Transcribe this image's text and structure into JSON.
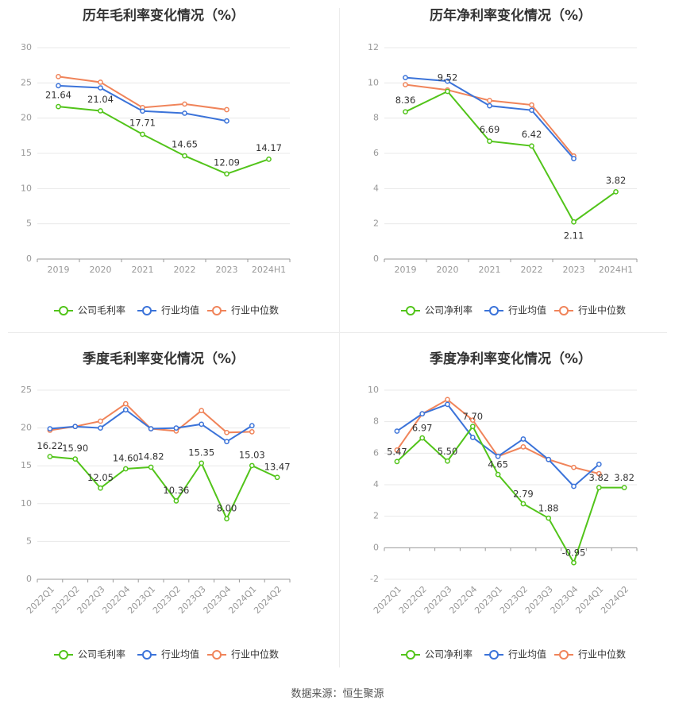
{
  "colors": {
    "company": "#52c41a",
    "avg": "#3b73d9",
    "median": "#f0845a",
    "axis": "#999999",
    "grid": "#e8e8e8"
  },
  "legend": {
    "avg": "行业均值",
    "median": "行业中位数"
  },
  "source": "数据来源：恒生聚源",
  "chart_data": [
    {
      "type": "line",
      "title": "历年毛利率变化情况（%）",
      "categories": [
        "2019",
        "2020",
        "2021",
        "2022",
        "2023",
        "2024H1"
      ],
      "ylim": [
        0,
        30
      ],
      "yticks": [
        0,
        5,
        10,
        15,
        20,
        25,
        30
      ],
      "legend_company": "公司毛利率",
      "series": [
        {
          "name": "公司毛利率",
          "key": "company",
          "labeled": true,
          "values": [
            21.64,
            21.04,
            17.71,
            14.65,
            12.09,
            14.17
          ]
        },
        {
          "name": "行业均值",
          "key": "avg",
          "values": [
            24.6,
            24.3,
            21.0,
            20.7,
            19.6,
            null
          ]
        },
        {
          "name": "行业中位数",
          "key": "median",
          "values": [
            25.9,
            25.1,
            21.5,
            22.0,
            21.2,
            null
          ]
        }
      ]
    },
    {
      "type": "line",
      "title": "历年净利率变化情况（%）",
      "categories": [
        "2019",
        "2020",
        "2021",
        "2022",
        "2023",
        "2024H1"
      ],
      "ylim": [
        0,
        12
      ],
      "yticks": [
        0,
        2,
        4,
        6,
        8,
        10,
        12
      ],
      "legend_company": "公司净利率",
      "series": [
        {
          "name": "公司净利率",
          "key": "company",
          "labeled": true,
          "values": [
            8.36,
            9.52,
            6.69,
            6.42,
            2.11,
            3.82
          ]
        },
        {
          "name": "行业均值",
          "key": "avg",
          "values": [
            10.3,
            10.1,
            8.7,
            8.45,
            5.7,
            null
          ]
        },
        {
          "name": "行业中位数",
          "key": "median",
          "values": [
            9.9,
            9.6,
            9.0,
            8.75,
            5.85,
            null
          ]
        }
      ]
    },
    {
      "type": "line",
      "title": "季度毛利率变化情况（%）",
      "categories": [
        "2022Q1",
        "2022Q2",
        "2022Q3",
        "2022Q4",
        "2023Q1",
        "2023Q2",
        "2023Q3",
        "2023Q4",
        "2024Q1",
        "2024Q2"
      ],
      "ylim": [
        0,
        25
      ],
      "yticks": [
        0,
        5,
        10,
        15,
        20,
        25
      ],
      "legend_company": "公司毛利率",
      "series": [
        {
          "name": "公司毛利率",
          "key": "company",
          "labeled": true,
          "values": [
            16.22,
            15.9,
            12.05,
            14.6,
            14.82,
            10.36,
            15.35,
            8.0,
            15.03,
            13.47
          ]
        },
        {
          "name": "行业均值",
          "key": "avg",
          "values": [
            19.9,
            20.2,
            20.0,
            22.4,
            19.9,
            20.0,
            20.5,
            18.2,
            20.3,
            null
          ]
        },
        {
          "name": "行业中位数",
          "key": "median",
          "values": [
            19.7,
            20.2,
            20.9,
            23.2,
            19.9,
            19.6,
            22.3,
            19.4,
            19.5,
            null
          ]
        }
      ]
    },
    {
      "type": "line",
      "title": "季度净利率变化情况（%）",
      "categories": [
        "2022Q1",
        "2022Q2",
        "2022Q3",
        "2022Q4",
        "2023Q1",
        "2023Q2",
        "2023Q3",
        "2023Q4",
        "2024Q1",
        "2024Q2"
      ],
      "ylim": [
        -2,
        10
      ],
      "yticks": [
        -2,
        0,
        2,
        4,
        6,
        8,
        10
      ],
      "legend_company": "公司净利率",
      "series": [
        {
          "name": "公司净利率",
          "key": "company",
          "labeled": true,
          "values": [
            5.47,
            6.97,
            5.5,
            7.7,
            4.65,
            2.79,
            1.88,
            -0.95,
            3.82,
            3.82
          ]
        },
        {
          "name": "行业均值",
          "key": "avg",
          "values": [
            7.4,
            8.5,
            9.1,
            7.0,
            5.8,
            6.9,
            5.6,
            3.9,
            5.3,
            null
          ]
        },
        {
          "name": "行业中位数",
          "key": "median",
          "values": [
            6.2,
            8.5,
            9.4,
            8.1,
            5.8,
            6.4,
            5.6,
            5.1,
            4.7,
            null
          ]
        }
      ]
    }
  ]
}
